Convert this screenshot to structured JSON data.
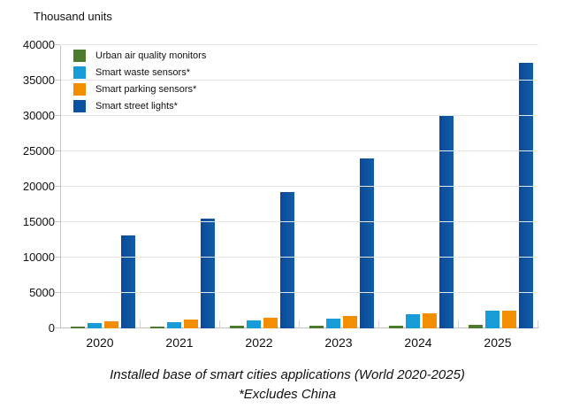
{
  "chart_data": {
    "type": "bar",
    "units_label": "Thousand units",
    "title": "Installed base of smart cities applications (World 2020-2025)",
    "subtitle": "*Excludes China",
    "categories": [
      "2020",
      "2021",
      "2022",
      "2023",
      "2024",
      "2025"
    ],
    "series": [
      {
        "name": "Urban air quality monitors",
        "color": "#4d7b2e",
        "values": [
          280,
          300,
          330,
          370,
          420,
          490
        ]
      },
      {
        "name": "Smart waste sensors*",
        "color": "#189cd8",
        "values": [
          800,
          900,
          1150,
          1400,
          2000,
          2450
        ]
      },
      {
        "name": "Smart parking sensors*",
        "color": "#f28e00",
        "values": [
          950,
          1250,
          1550,
          1750,
          2100,
          2550
        ]
      },
      {
        "name": "Smart street lights*",
        "color": "#0d52a1",
        "values": [
          13100,
          15450,
          19300,
          24000,
          30100,
          37500
        ]
      }
    ],
    "ylim": [
      0,
      40000
    ],
    "ytick_step": 5000,
    "grid": true,
    "legend_position": "top-left"
  }
}
